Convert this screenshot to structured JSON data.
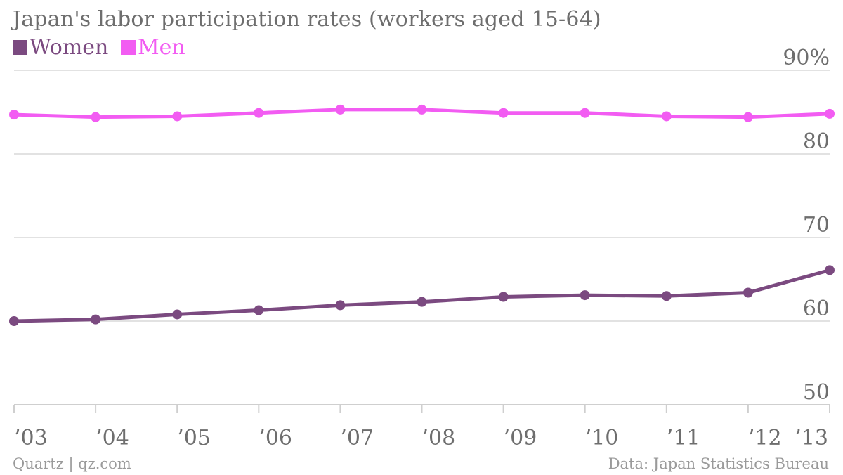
{
  "chart_data": {
    "type": "line",
    "title": "Japan's labor participation rates (workers aged 15-64)",
    "categories": [
      "’03",
      "’04",
      "’05",
      "’06",
      "’07",
      "’08",
      "’09",
      "’10",
      "’11",
      "’12",
      "’13"
    ],
    "series": [
      {
        "name": "Women",
        "color": "#7b4a80",
        "values": [
          60.0,
          60.2,
          60.8,
          61.3,
          61.9,
          62.3,
          62.9,
          63.1,
          63.0,
          63.4,
          66.1
        ]
      },
      {
        "name": "Men",
        "color": "#f25cf2",
        "values": [
          84.7,
          84.4,
          84.5,
          84.9,
          85.3,
          85.3,
          84.9,
          84.9,
          84.5,
          84.4,
          84.8
        ]
      }
    ],
    "ylim": [
      50,
      90
    ],
    "yticks": [
      50,
      60,
      70,
      80,
      90
    ],
    "ytick_labels": [
      "50",
      "60",
      "70",
      "80",
      "90%"
    ],
    "grid": true,
    "legend_position": "top-left"
  },
  "footer": {
    "credit": "Quartz | qz.com",
    "source": "Data: Japan Statistics Bureau"
  }
}
